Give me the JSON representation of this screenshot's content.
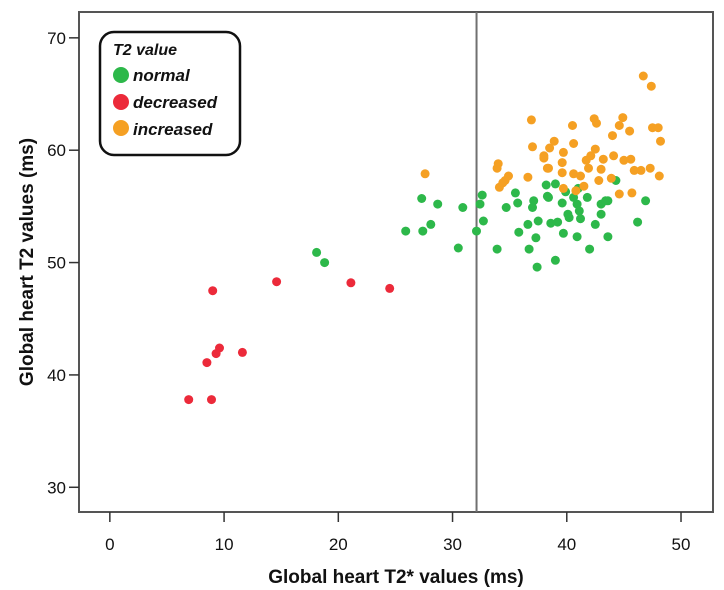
{
  "chart_data": {
    "type": "scatter",
    "title": "",
    "xlabel": "Global heart T2* values (ms)",
    "ylabel": "Global heart T2 values (ms)",
    "xlim": [
      -2.7,
      52.8
    ],
    "ylim": [
      27.8,
      72.3
    ],
    "xticks": [
      0,
      10,
      20,
      30,
      40,
      50
    ],
    "yticks": [
      30,
      40,
      50,
      60,
      70
    ],
    "grid": false,
    "reference_line": {
      "orientation": "vertical",
      "x": 32.1,
      "color": "#707070"
    },
    "legend": {
      "title": "T2 value",
      "placement": "top-left",
      "entries": [
        {
          "label": "normal",
          "color": "#2db84a"
        },
        {
          "label": "decreased",
          "color": "#ec2a3a"
        },
        {
          "label": "increased",
          "color": "#f5a023"
        }
      ]
    },
    "series": [
      {
        "name": "normal",
        "color": "#2db84a",
        "points": [
          [
            18.1,
            50.9
          ],
          [
            18.8,
            50.0
          ],
          [
            25.9,
            52.8
          ],
          [
            27.4,
            52.8
          ],
          [
            28.1,
            53.4
          ],
          [
            27.3,
            55.7
          ],
          [
            28.7,
            55.2
          ],
          [
            30.9,
            54.9
          ],
          [
            30.5,
            51.3
          ],
          [
            32.1,
            52.8
          ],
          [
            32.6,
            56.0
          ],
          [
            32.4,
            55.2
          ],
          [
            32.7,
            53.7
          ],
          [
            33.9,
            51.2
          ],
          [
            35.5,
            56.2
          ],
          [
            35.7,
            55.3
          ],
          [
            34.7,
            54.9
          ],
          [
            37.1,
            55.5
          ],
          [
            37.0,
            54.9
          ],
          [
            38.2,
            56.9
          ],
          [
            38.3,
            55.9
          ],
          [
            36.6,
            53.4
          ],
          [
            37.5,
            53.7
          ],
          [
            35.8,
            52.7
          ],
          [
            37.3,
            52.2
          ],
          [
            36.7,
            51.2
          ],
          [
            37.4,
            49.6
          ],
          [
            39.0,
            57.0
          ],
          [
            38.4,
            55.8
          ],
          [
            39.6,
            55.3
          ],
          [
            40.6,
            55.8
          ],
          [
            40.9,
            55.2
          ],
          [
            41.8,
            55.8
          ],
          [
            41.1,
            54.6
          ],
          [
            40.1,
            54.3
          ],
          [
            39.2,
            53.6
          ],
          [
            38.6,
            53.5
          ],
          [
            41.2,
            53.9
          ],
          [
            43.0,
            55.2
          ],
          [
            43.6,
            55.5
          ],
          [
            43.0,
            54.3
          ],
          [
            42.5,
            53.4
          ],
          [
            39.7,
            52.6
          ],
          [
            40.9,
            52.3
          ],
          [
            42.0,
            51.2
          ],
          [
            43.6,
            52.3
          ],
          [
            39.0,
            50.2
          ],
          [
            44.3,
            57.3
          ],
          [
            43.4,
            55.5
          ],
          [
            46.9,
            55.5
          ],
          [
            46.2,
            53.6
          ],
          [
            40.2,
            54.0
          ],
          [
            41.0,
            56.6
          ],
          [
            39.9,
            56.3
          ]
        ]
      },
      {
        "name": "decreased",
        "color": "#ec2a3a",
        "points": [
          [
            9.0,
            47.5
          ],
          [
            14.6,
            48.3
          ],
          [
            21.1,
            48.2
          ],
          [
            24.5,
            47.7
          ],
          [
            9.6,
            42.4
          ],
          [
            9.3,
            41.9
          ],
          [
            11.6,
            42.0
          ],
          [
            8.5,
            41.1
          ],
          [
            6.9,
            37.8
          ],
          [
            8.9,
            37.8
          ]
        ]
      },
      {
        "name": "increased",
        "color": "#f5a023",
        "points": [
          [
            27.6,
            57.9
          ],
          [
            36.9,
            62.7
          ],
          [
            37.0,
            60.3
          ],
          [
            34.0,
            58.8
          ],
          [
            33.9,
            58.4
          ],
          [
            34.9,
            57.7
          ],
          [
            34.6,
            57.3
          ],
          [
            34.1,
            56.7
          ],
          [
            36.6,
            57.6
          ],
          [
            38.0,
            59.3
          ],
          [
            38.3,
            58.4
          ],
          [
            34.4,
            57.1
          ],
          [
            40.5,
            62.2
          ],
          [
            42.4,
            62.8
          ],
          [
            42.6,
            62.4
          ],
          [
            38.9,
            60.8
          ],
          [
            40.6,
            60.6
          ],
          [
            38.5,
            60.2
          ],
          [
            38.0,
            59.5
          ],
          [
            39.7,
            59.8
          ],
          [
            42.5,
            60.1
          ],
          [
            42.1,
            59.5
          ],
          [
            39.6,
            58.9
          ],
          [
            41.7,
            59.1
          ],
          [
            43.2,
            59.2
          ],
          [
            38.4,
            58.4
          ],
          [
            39.6,
            58.0
          ],
          [
            41.9,
            58.4
          ],
          [
            43.0,
            58.3
          ],
          [
            40.6,
            57.9
          ],
          [
            41.2,
            57.7
          ],
          [
            42.8,
            57.3
          ],
          [
            39.7,
            56.6
          ],
          [
            41.5,
            56.8
          ],
          [
            40.8,
            56.4
          ],
          [
            46.7,
            66.6
          ],
          [
            47.4,
            65.7
          ],
          [
            44.9,
            62.9
          ],
          [
            44.6,
            62.2
          ],
          [
            45.5,
            61.7
          ],
          [
            44.0,
            61.3
          ],
          [
            47.5,
            62.0
          ],
          [
            48.0,
            62.0
          ],
          [
            48.2,
            60.8
          ],
          [
            44.1,
            59.5
          ],
          [
            45.0,
            59.1
          ],
          [
            45.6,
            59.2
          ],
          [
            45.9,
            58.2
          ],
          [
            46.5,
            58.2
          ],
          [
            47.3,
            58.4
          ],
          [
            48.1,
            57.7
          ],
          [
            43.9,
            57.5
          ],
          [
            44.6,
            56.1
          ],
          [
            45.7,
            56.2
          ]
        ]
      }
    ]
  }
}
